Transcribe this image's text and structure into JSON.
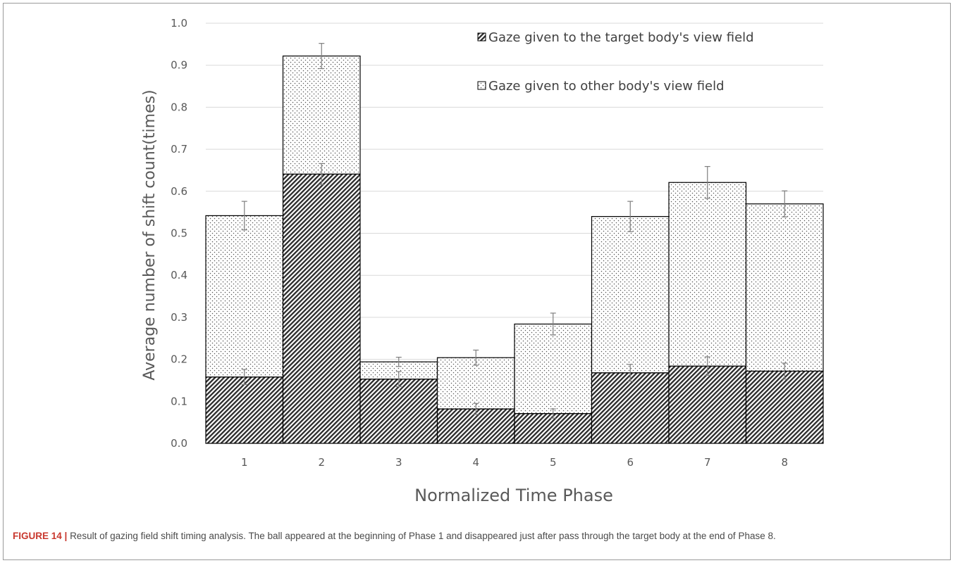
{
  "chart_data": {
    "type": "bar",
    "stacked": true,
    "categories": [
      "1",
      "2",
      "3",
      "4",
      "5",
      "6",
      "7",
      "8"
    ],
    "series": [
      {
        "name": "Gaze given to the target body's view field",
        "pattern": "diagonal-hatch",
        "values": [
          0.158,
          0.641,
          0.153,
          0.082,
          0.071,
          0.168,
          0.184,
          0.172
        ],
        "error": [
          0.018,
          0.025,
          0.018,
          0.013,
          0.011,
          0.02,
          0.022,
          0.019
        ]
      },
      {
        "name": "Gaze given to other body's view field",
        "pattern": "dots",
        "values": [
          0.384,
          0.281,
          0.041,
          0.122,
          0.213,
          0.372,
          0.437,
          0.398
        ],
        "error": [
          0.034,
          0.03,
          0.011,
          0.018,
          0.026,
          0.036,
          0.038,
          0.031
        ]
      }
    ],
    "xlabel": "Normalized Time Phase",
    "ylabel": "Average number of shift count(times)",
    "ylim": [
      0,
      1.0
    ],
    "yticks": [
      "0.0",
      "0.1",
      "0.2",
      "0.3",
      "0.4",
      "0.5",
      "0.6",
      "0.7",
      "0.8",
      "0.9",
      "1.0"
    ],
    "grid": true,
    "legend_position": "top-right",
    "colors": {
      "bar_edge": "#000000",
      "hatch": "#2a2a2a",
      "dots": "#555555",
      "grid": "#d9d9d9",
      "text": "#595959"
    }
  },
  "caption": {
    "label": "FIGURE 14 |",
    "text": "Result of gazing field shift timing analysis. The ball appeared at the beginning of Phase 1 and disappeared just after pass through the target body at the end of Phase 8."
  }
}
